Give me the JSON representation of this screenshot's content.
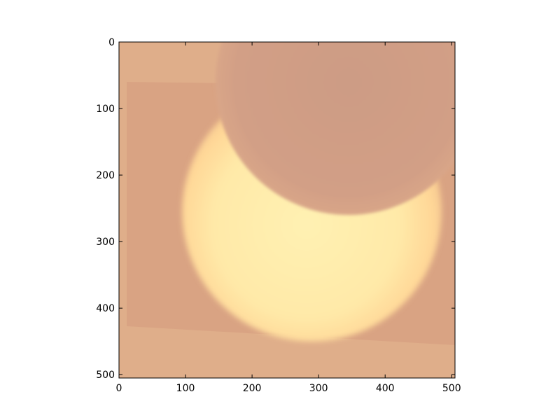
{
  "chart_data": {
    "type": "heatmap",
    "title": "",
    "xlabel": "",
    "ylabel": "",
    "xlim": [
      0,
      505
    ],
    "ylim": [
      505,
      0
    ],
    "y_inverted": true,
    "grid": false,
    "legend": "none",
    "x_ticks": [
      0,
      100,
      200,
      300,
      400,
      500
    ],
    "y_ticks": [
      0,
      100,
      200,
      300,
      400,
      500
    ],
    "x_tick_labels": [
      "0",
      "100",
      "200",
      "300",
      "400",
      "500"
    ],
    "y_tick_labels": [
      "0",
      "100",
      "200",
      "300",
      "400",
      "500"
    ],
    "image_description": "Photograph of a partial solar eclipse: bright crescent sun on an orange-tan background",
    "colors": {
      "background": "#dfae8a",
      "photo_region": "#d9a383",
      "moon_disc": "#d09e85",
      "sun_core": "#fff1b2",
      "sun_mid": "#ffe39f",
      "sun_edge": "#f2c38f",
      "axes_frame": "#000000"
    }
  }
}
